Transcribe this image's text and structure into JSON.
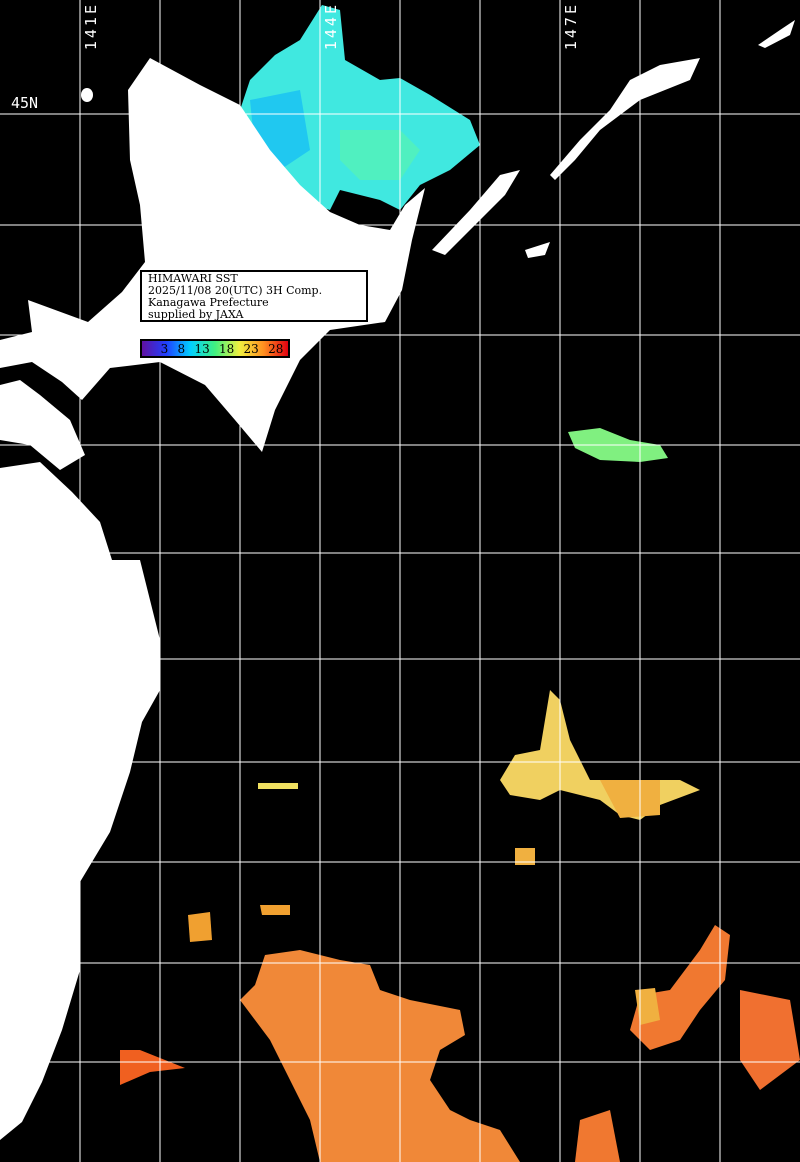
{
  "map": {
    "info_lines": [
      "HIMAWARI SST",
      "2025/11/08 20(UTC) 3H Comp.",
      "Kanagawa Prefecture",
      "supplied by JAXA"
    ],
    "longitude_labels": [
      "141E",
      "144E",
      "147E"
    ],
    "latitude_labels": [
      "45N"
    ],
    "colorbar": {
      "ticks": [
        "3",
        "8",
        "13",
        "18",
        "23",
        "28"
      ],
      "colors": [
        "#6010a0",
        "#2040ff",
        "#00d0ff",
        "#40f080",
        "#f0f040",
        "#ff9020",
        "#e00010"
      ]
    },
    "colors": {
      "land": "#ffffff",
      "ocean_no_data": "#000000",
      "grid": "#ffffff"
    }
  }
}
